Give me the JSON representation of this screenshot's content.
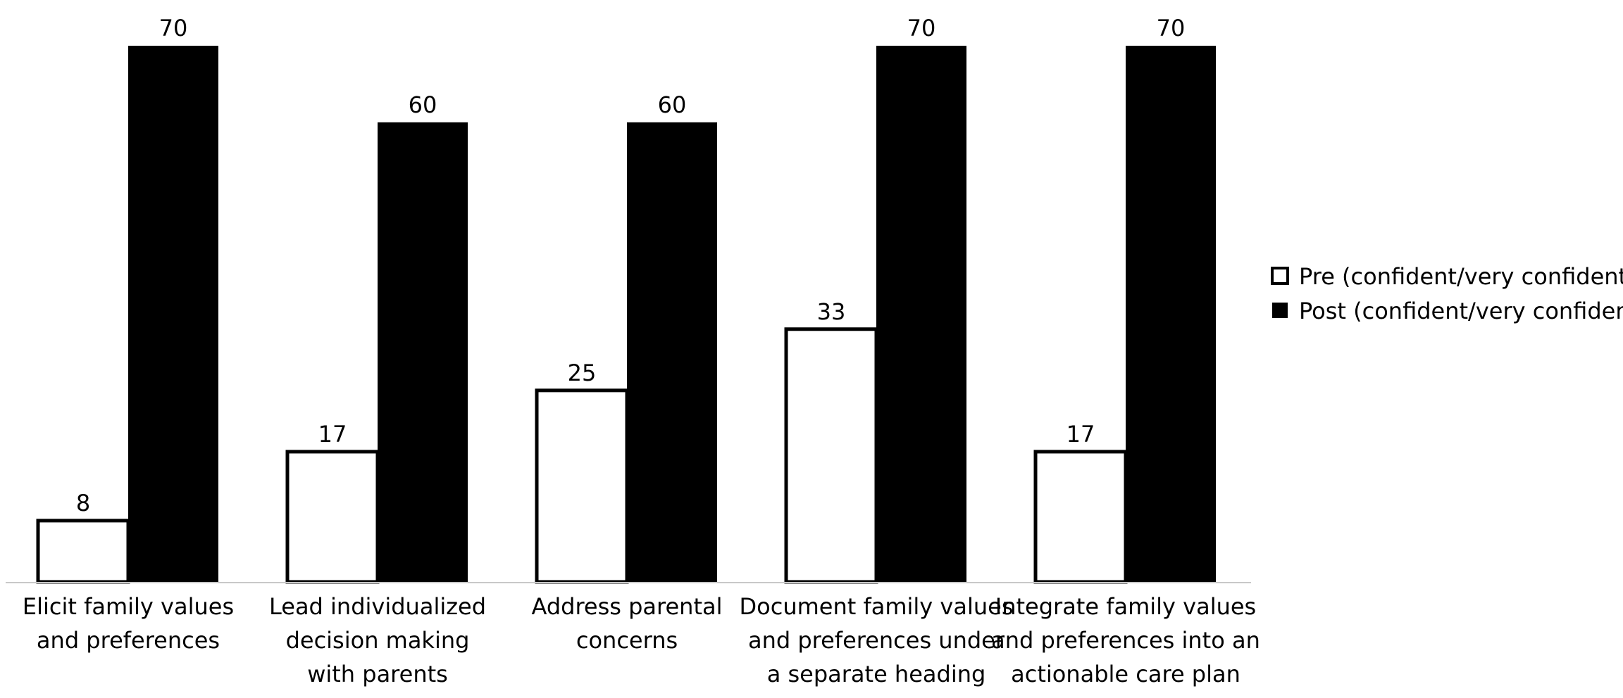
{
  "chart_data": {
    "type": "bar",
    "title": "",
    "xlabel": "",
    "ylabel": "",
    "ylim": [
      0,
      70
    ],
    "grid": false,
    "legend_position": "right",
    "categories": [
      [
        "Elicit family values",
        "and preferences"
      ],
      [
        "Lead individualized",
        "decision making",
        "with parents"
      ],
      [
        "Address parental",
        "concerns"
      ],
      [
        "Document family values",
        "and preferences under",
        "a separate heading"
      ],
      [
        "Integrate family values",
        "and preferences into an",
        "actionable care plan"
      ]
    ],
    "series": [
      {
        "name": "Pre (confident/very confident)",
        "values": [
          8,
          17,
          25,
          33,
          17
        ],
        "fill": "#ffffff",
        "stroke": "#000000"
      },
      {
        "name": "Post (confident/very confident)",
        "values": [
          70,
          60,
          60,
          70,
          70
        ],
        "fill": "#000000",
        "stroke": "#000000"
      }
    ]
  }
}
